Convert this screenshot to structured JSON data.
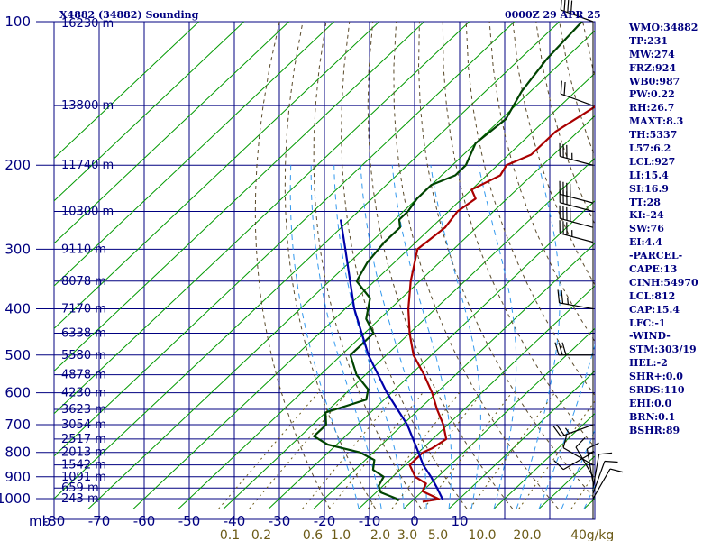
{
  "header": {
    "station": "X4882 (34882) Sounding",
    "time": "0000Z 29 APR 25"
  },
  "indices": [
    "WMO:34882",
    "TP:231",
    "MW:274",
    "FRZ:924",
    "WB0:987",
    "PW:0.22",
    "RH:26.7",
    "MAXT:8.3",
    "TH:5337",
    "L57:6.2",
    "LCL:927",
    "LI:15.4",
    "SI:16.9",
    "TT:28",
    "KI:-24",
    "SW:76",
    "EI:4.4",
    "-PARCEL-",
    "CAPE:13",
    "CINH:54970",
    "LCL:812",
    "CAP:15.4",
    "LFC:-1",
    "-WIND-",
    "STM:303/19",
    "HEL:-2",
    "SHR+:0.0",
    "SRDS:110",
    "EHI:0.0",
    "BRN:0.1",
    "BSHR:89"
  ],
  "chart_data": {
    "type": "line",
    "subtype": "skew-t log-p sounding",
    "y_scale": "log",
    "ylabel": "mb",
    "ylim": [
      1050,
      100
    ],
    "xlim": [
      -80,
      10
    ],
    "pressure_ticks": [
      100,
      200,
      300,
      400,
      500,
      600,
      700,
      800,
      900,
      1000
    ],
    "temperature_ticks": [
      -80,
      -70,
      -60,
      -50,
      -40,
      -30,
      -20,
      -10,
      0,
      10
    ],
    "temperature_tick_labels": [
      "-80",
      "-70",
      "-60",
      "-50",
      "-40",
      "-30",
      "-20",
      "-10",
      "0",
      "10"
    ],
    "mixing_ratio_labels": [
      {
        "label": "0.1",
        "value": 0.1
      },
      {
        "label": "0.2",
        "value": 0.2
      },
      {
        "label": "0.6",
        "value": 0.6
      },
      {
        "label": "1.0",
        "value": 1.0
      },
      {
        "label": "2.0",
        "value": 2.0
      },
      {
        "label": "3.0",
        "value": 3.0
      },
      {
        "label": "5.0",
        "value": 5.0
      },
      {
        "label": "10.0",
        "value": 10.0
      },
      {
        "label": "20.0",
        "value": 20.0
      },
      {
        "label": "40",
        "value": 40
      }
    ],
    "mixing_ratio_unit": "g/kg",
    "heights": [
      {
        "label": "16230 m",
        "p": 100
      },
      {
        "label": "13800 m",
        "p": 150
      },
      {
        "label": "11740 m",
        "p": 200
      },
      {
        "label": "10300 m",
        "p": 250
      },
      {
        "label": "9110 m",
        "p": 300
      },
      {
        "label": "8078 m",
        "p": 350
      },
      {
        "label": "7170 m",
        "p": 400
      },
      {
        "label": "6338 m",
        "p": 450
      },
      {
        "label": "5580 m",
        "p": 500
      },
      {
        "label": "4878 m",
        "p": 550
      },
      {
        "label": "4230 m",
        "p": 600
      },
      {
        "label": "3623 m",
        "p": 650
      },
      {
        "label": "3054 m",
        "p": 700
      },
      {
        "label": "2517 m",
        "p": 750
      },
      {
        "label": "2013 m",
        "p": 800
      },
      {
        "label": "1542 m",
        "p": 850
      },
      {
        "label": "1091 m",
        "p": 900
      },
      {
        "label": "659 m",
        "p": 950
      },
      {
        "label": "243 m",
        "p": 1000
      }
    ],
    "series": [
      {
        "role": "temperature",
        "color": "#aa0000",
        "points": [
          [
            1015,
            2.5
          ],
          [
            1002,
            5.5
          ],
          [
            985,
            3
          ],
          [
            965,
            0
          ],
          [
            930,
            -1
          ],
          [
            900,
            -5
          ],
          [
            850,
            -9
          ],
          [
            800,
            -9
          ],
          [
            785,
            -8
          ],
          [
            750,
            -7
          ],
          [
            700,
            -11
          ],
          [
            650,
            -16
          ],
          [
            600,
            -21
          ],
          [
            550,
            -27
          ],
          [
            500,
            -34
          ],
          [
            450,
            -40
          ],
          [
            400,
            -46
          ],
          [
            350,
            -52
          ],
          [
            300,
            -58
          ],
          [
            270,
            -57
          ],
          [
            250,
            -58
          ],
          [
            235,
            -57
          ],
          [
            225,
            -60
          ],
          [
            210,
            -57
          ],
          [
            200,
            -58
          ],
          [
            190,
            -55
          ],
          [
            170,
            -55
          ],
          [
            150,
            -52
          ],
          [
            130,
            -56
          ],
          [
            115,
            -57
          ],
          [
            100,
            -57
          ]
        ]
      },
      {
        "role": "dewpoint",
        "color": "#004400",
        "points": [
          [
            1010,
            -3
          ],
          [
            1000,
            -4
          ],
          [
            970,
            -9
          ],
          [
            940,
            -11
          ],
          [
            900,
            -12
          ],
          [
            870,
            -16
          ],
          [
            830,
            -18
          ],
          [
            800,
            -23
          ],
          [
            770,
            -32
          ],
          [
            740,
            -37
          ],
          [
            700,
            -37
          ],
          [
            660,
            -40
          ],
          [
            620,
            -34
          ],
          [
            590,
            -36
          ],
          [
            550,
            -42
          ],
          [
            500,
            -48
          ],
          [
            450,
            -48
          ],
          [
            420,
            -53
          ],
          [
            380,
            -57
          ],
          [
            350,
            -64
          ],
          [
            320,
            -66
          ],
          [
            290,
            -67
          ],
          [
            270,
            -67
          ],
          [
            260,
            -69
          ],
          [
            250,
            -69
          ],
          [
            235,
            -70
          ],
          [
            220,
            -70
          ],
          [
            210,
            -67
          ],
          [
            200,
            -67
          ],
          [
            180,
            -70
          ],
          [
            160,
            -69
          ],
          [
            140,
            -72
          ],
          [
            120,
            -74
          ],
          [
            100,
            -75
          ]
        ]
      },
      {
        "role": "parcel",
        "color": "#0000aa",
        "points": [
          [
            1005,
            6.5
          ],
          [
            950,
            2.5
          ],
          [
            900,
            -1.5
          ],
          [
            850,
            -6
          ],
          [
            800,
            -10
          ],
          [
            700,
            -19
          ],
          [
            600,
            -31
          ],
          [
            500,
            -44
          ],
          [
            400,
            -58
          ],
          [
            300,
            -74
          ],
          [
            260,
            -82
          ]
        ]
      }
    ],
    "wind_barbs": [
      {
        "p": 100,
        "dir": 290,
        "kt": 40
      },
      {
        "p": 150,
        "dir": 290,
        "kt": 20
      },
      {
        "p": 200,
        "dir": 285,
        "kt": 35
      },
      {
        "p": 240,
        "dir": 285,
        "kt": 40
      },
      {
        "p": 250,
        "dir": 285,
        "kt": 40
      },
      {
        "p": 270,
        "dir": 285,
        "kt": 40
      },
      {
        "p": 290,
        "dir": 285,
        "kt": 35
      },
      {
        "p": 400,
        "dir": 280,
        "kt": 25
      },
      {
        "p": 500,
        "dir": 270,
        "kt": 30
      },
      {
        "p": 700,
        "dir": 250,
        "kt": 25
      },
      {
        "p": 800,
        "dir": 240,
        "kt": 10
      },
      {
        "p": 850,
        "dir": 300,
        "kt": 10
      },
      {
        "p": 900,
        "dir": 330,
        "kt": 10
      },
      {
        "p": 925,
        "dir": 350,
        "kt": 15
      },
      {
        "p": 950,
        "dir": 10,
        "kt": 10
      },
      {
        "p": 975,
        "dir": 20,
        "kt": 10
      },
      {
        "p": 1000,
        "dir": 30,
        "kt": 10
      }
    ],
    "colors": {
      "frame": "#000080",
      "isotherm": "#009900",
      "dry_adiabat": "#5a4a2a",
      "moist_adiabat": "#3399ee",
      "temperature": "#aa0000",
      "dewpoint": "#004400",
      "parcel": "#0000aa",
      "barb": "#000000"
    }
  }
}
